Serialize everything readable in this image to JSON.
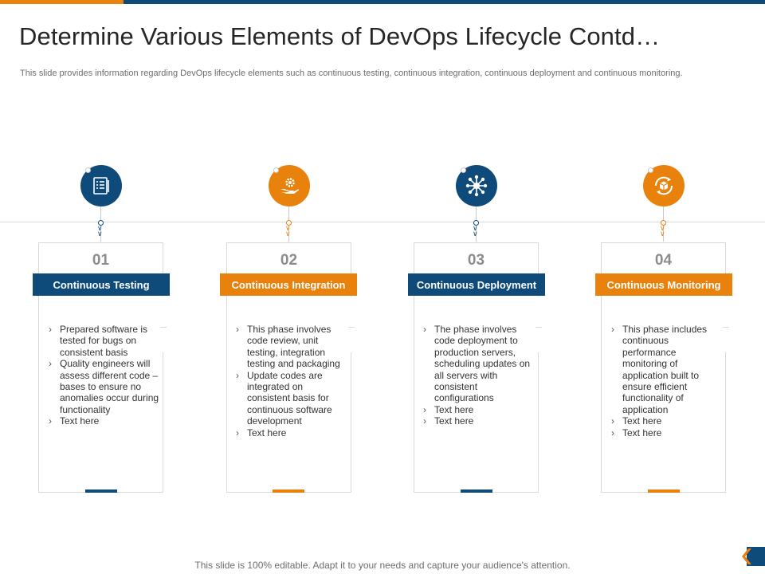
{
  "slide": {
    "title": "Determine Various Elements of DevOps Lifecycle Contd…",
    "subtitle": "This slide provides information regarding DevOps lifecycle elements such as continuous testing, continuous integration, continuous deployment and continuous monitoring.",
    "footer": "This slide is 100% editable. Adapt it to your needs and capture your audience's attention."
  },
  "colors": {
    "blue": "#0e4a7a",
    "orange": "#e8820c",
    "border": "#d9d9d9"
  },
  "stages": [
    {
      "number": "01",
      "label": "Continuous Testing",
      "color": "blue",
      "icon": "checklist-icon",
      "bullets": [
        "Prepared software is tested for bugs on consistent basis",
        "Quality engineers will assess different code – bases to ensure no anomalies occur during functionality",
        "Text here"
      ]
    },
    {
      "number": "02",
      "label": "Continuous Integration",
      "color": "orange",
      "icon": "gear-in-hand-icon",
      "bullets": [
        "This phase involves code review, unit testing, integration testing and packaging",
        "Update codes are integrated on consistent basis for continuous software development",
        "Text here"
      ]
    },
    {
      "number": "03",
      "label": "Continuous Deployment",
      "color": "blue",
      "icon": "network-hub-icon",
      "bullets": [
        "The phase involves code deployment to production servers, scheduling updates on all servers with consistent configurations",
        "Text here",
        "Text here"
      ]
    },
    {
      "number": "04",
      "label": "Continuous Monitoring",
      "color": "orange",
      "icon": "cycle-box-icon",
      "bullets": [
        "This phase includes continuous performance monitoring of application built to ensure efficient functionality of application",
        "Text here",
        "Text here"
      ]
    }
  ]
}
